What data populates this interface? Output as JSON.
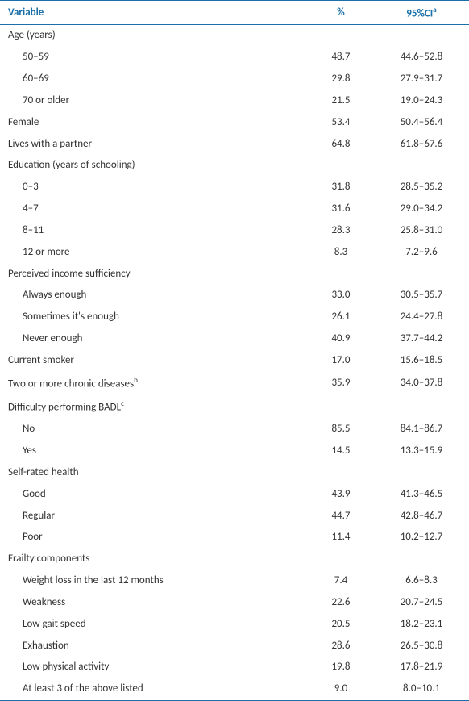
{
  "colors": {
    "header_border": "#1b6fa8",
    "header_text": "#1b6fa8",
    "body_text": "#333333",
    "background": "#ffffff"
  },
  "header": {
    "variable": "Variable",
    "pct": "%",
    "ci": "95%CI",
    "ci_sup": "a"
  },
  "rows": [
    {
      "label": "Age (years)",
      "indent": false,
      "pct": "",
      "ci": ""
    },
    {
      "label": "50–59",
      "indent": true,
      "pct": "48.7",
      "ci": "44.6–52.8"
    },
    {
      "label": "60–69",
      "indent": true,
      "pct": "29.8",
      "ci": "27.9–31.7"
    },
    {
      "label": "70 or older",
      "indent": true,
      "pct": "21.5",
      "ci": "19.0–24.3"
    },
    {
      "label": "Female",
      "indent": false,
      "pct": "53.4",
      "ci": "50.4–56.4"
    },
    {
      "label": "Lives with a partner",
      "indent": false,
      "pct": "64.8",
      "ci": "61.8–67.6"
    },
    {
      "label": "Education (years of schooling)",
      "indent": false,
      "pct": "",
      "ci": ""
    },
    {
      "label": "0–3",
      "indent": true,
      "pct": "31.8",
      "ci": "28.5–35.2"
    },
    {
      "label": "4–7",
      "indent": true,
      "pct": "31.6",
      "ci": "29.0–34.2"
    },
    {
      "label": "8–11",
      "indent": true,
      "pct": "28.3",
      "ci": "25.8–31.0"
    },
    {
      "label": "12 or more",
      "indent": true,
      "pct": "8.3",
      "ci": "7.2–9.6"
    },
    {
      "label": "Perceived income sufficiency",
      "indent": false,
      "pct": "",
      "ci": ""
    },
    {
      "label": "Always enough",
      "indent": true,
      "pct": "33.0",
      "ci": "30.5–35.7"
    },
    {
      "label": "Sometimes it's enough",
      "indent": true,
      "pct": "26.1",
      "ci": "24.4–27.8"
    },
    {
      "label": "Never enough",
      "indent": true,
      "pct": "40.9",
      "ci": "37.7–44.2"
    },
    {
      "label": "Current smoker",
      "indent": false,
      "pct": "17.0",
      "ci": "15.6–18.5"
    },
    {
      "label": "Two or more chronic diseases",
      "sup": "b",
      "indent": false,
      "pct": "35.9",
      "ci": "34.0–37.8"
    },
    {
      "label": "Difficulty performing BADL",
      "sup": "c",
      "indent": false,
      "pct": "",
      "ci": ""
    },
    {
      "label": "No",
      "indent": true,
      "pct": "85.5",
      "ci": "84.1–86.7"
    },
    {
      "label": "Yes",
      "indent": true,
      "pct": "14.5",
      "ci": "13.3–15.9"
    },
    {
      "label": "Self-rated health",
      "indent": false,
      "pct": "",
      "ci": ""
    },
    {
      "label": "Good",
      "indent": true,
      "pct": "43.9",
      "ci": "41.3–46.5"
    },
    {
      "label": "Regular",
      "indent": true,
      "pct": "44.7",
      "ci": "42.8–46.7"
    },
    {
      "label": "Poor",
      "indent": true,
      "pct": "11.4",
      "ci": "10.2–12.7"
    },
    {
      "label": "Frailty components",
      "indent": false,
      "pct": "",
      "ci": ""
    },
    {
      "label": "Weight loss in the last 12 months",
      "indent": true,
      "pct": "7.4",
      "ci": "6.6–8.3"
    },
    {
      "label": "Weakness",
      "indent": true,
      "pct": "22.6",
      "ci": "20.7–24.5"
    },
    {
      "label": "Low gait speed",
      "indent": true,
      "pct": "20.5",
      "ci": "18.2–23.1"
    },
    {
      "label": "Exhaustion",
      "indent": true,
      "pct": "28.6",
      "ci": "26.5–30.8"
    },
    {
      "label": "Low physical activity",
      "indent": true,
      "pct": "19.8",
      "ci": "17.8–21.9"
    },
    {
      "label": "At least 3 of the above listed",
      "indent": true,
      "pct": "9.0",
      "ci": "8.0–10.1"
    }
  ]
}
